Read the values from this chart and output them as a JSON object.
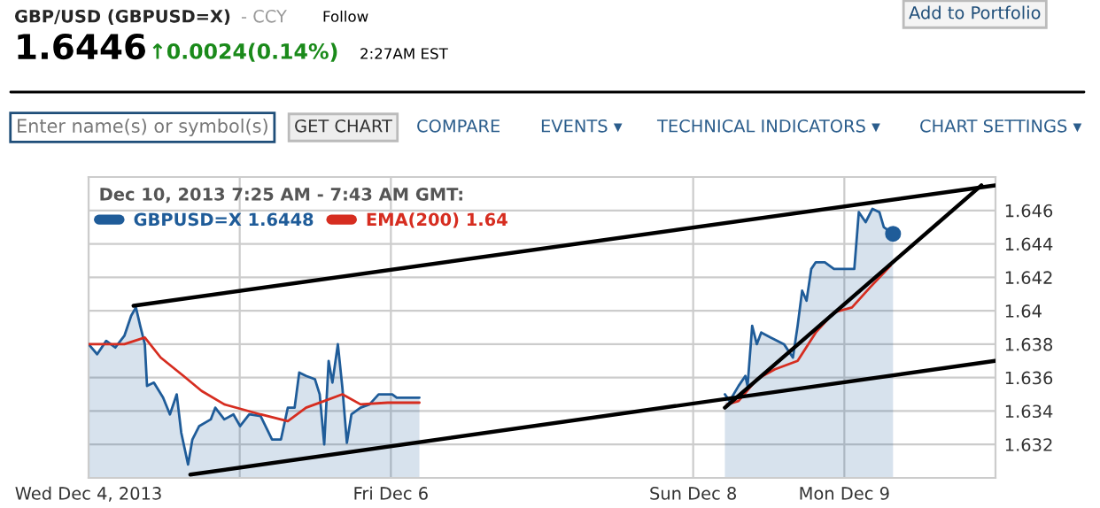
{
  "chart_data": {
    "type": "area",
    "title": "GBP/USD (GBPUSD=X)",
    "annotations": [
      "- CCY",
      "Follow",
      "1.6446",
      "↑0.0024(0.14%)",
      "2:27AM EST",
      "Add to Portfolio",
      "Enter name(s) or symbol(s)",
      "GET CHART",
      "COMPARE",
      "EVENTS ▾",
      "TECHNICAL INDICATORS ▾",
      "CHART SETTINGS ▾"
    ],
    "legend_title": "Dec 10, 2013 7:25 AM - 7:43 AM GMT:",
    "xlim": [
      "2013-12-04",
      "2013-12-10"
    ],
    "xticks": [
      {
        "value": "2013-12-04",
        "label": "Wed Dec 4, 2013"
      },
      {
        "value": "2013-12-05",
        "label": null
      },
      {
        "value": "2013-12-06",
        "label": "Fri Dec 6"
      },
      {
        "value": "2013-12-08",
        "label": "Sun Dec 8"
      },
      {
        "value": "2013-12-09",
        "label": "Mon Dec 9"
      }
    ],
    "ylim": [
      1.63,
      1.648
    ],
    "yticks": [
      1.632,
      1.634,
      1.636,
      1.638,
      1.64,
      1.642,
      1.644,
      1.646
    ],
    "grid": true,
    "legend": "top left",
    "series": [
      {
        "name": "GBPUSD=X 1.6448",
        "color": "#1f5c99",
        "x": [
          "2013-12-04T00:00",
          "2013-12-04T01:22",
          "2013-12-04T02:48",
          "2013-12-04T04:15",
          "2013-12-04T05:41",
          "2013-12-04T06:46",
          "2013-12-04T07:31",
          "2013-12-04T08:12",
          "2013-12-04T08:56",
          "2013-12-04T09:17",
          "2013-12-04T10:22",
          "2013-12-04T11:50",
          "2013-12-04T12:55",
          "2013-12-04T14:00",
          "2013-12-04T14:43",
          "2013-12-04T15:48",
          "2013-12-04T16:29",
          "2013-12-04T17:34",
          "2013-12-04T19:24",
          "2013-12-04T20:07",
          "2013-12-04T21:33",
          "2013-12-04T23:00",
          "2013-12-05T00:04",
          "2013-12-05T01:31",
          "2013-12-05T03:19",
          "2013-12-05T05:08",
          "2013-12-05T06:33",
          "2013-12-05T07:38",
          "2013-12-05T08:43",
          "2013-12-05T09:27",
          "2013-12-05T10:32",
          "2013-12-05T11:57",
          "2013-12-05T12:42",
          "2013-12-05T13:25",
          "2013-12-05T14:07",
          "2013-12-05T14:43",
          "2013-12-05T15:35",
          "2013-12-05T16:18",
          "2013-12-05T17:01",
          "2013-12-05T17:44",
          "2013-12-05T19:11",
          "2013-12-05T20:37",
          "2013-12-05T22:03",
          "2013-12-06T00:13",
          "2013-12-06T00:56",
          "2013-12-06T04:32",
          "2013-12-06T16:48",
          "2013-12-08T05:02",
          "2013-12-08T05:47",
          "2013-12-08T07:12",
          "2013-12-08T08:17",
          "2013-12-08T08:38",
          "2013-12-08T09:22",
          "2013-12-08T10:06",
          "2013-12-08T10:48",
          "2013-12-08T12:16",
          "2013-12-08T14:25",
          "2013-12-08T15:50",
          "2013-12-08T16:35",
          "2013-12-08T17:18",
          "2013-12-08T18:00",
          "2013-12-08T18:45",
          "2013-12-08T19:28",
          "2013-12-08T20:54",
          "2013-12-08T22:21",
          "2013-12-09T00:30",
          "2013-12-09T01:35",
          "2013-12-09T02:18",
          "2013-12-09T03:23",
          "2013-12-09T04:28",
          "2013-12-09T05:34",
          "2013-12-09T06:16",
          "2013-12-09T06:59",
          "2013-12-09T07:44"
        ],
        "values": [
          1.638,
          1.6374,
          1.6382,
          1.6378,
          1.6385,
          1.6397,
          1.6402,
          1.6391,
          1.638,
          1.6355,
          1.6357,
          1.6348,
          1.6338,
          1.635,
          1.6327,
          1.6308,
          1.6323,
          1.6331,
          1.6335,
          1.6342,
          1.6335,
          1.6338,
          1.6331,
          1.6338,
          1.6337,
          1.6323,
          1.6323,
          1.6342,
          1.6342,
          1.6363,
          1.6361,
          1.6359,
          1.635,
          1.632,
          1.637,
          1.6357,
          1.638,
          1.6354,
          1.6321,
          1.6338,
          1.6342,
          1.6344,
          1.635,
          1.635,
          1.6348,
          1.6348,
          null,
          1.635,
          1.6346,
          1.6355,
          1.6361,
          1.6355,
          1.6391,
          1.638,
          1.6387,
          1.6384,
          1.638,
          1.6372,
          1.6391,
          1.6412,
          1.6406,
          1.6425,
          1.6429,
          1.6429,
          1.6425,
          1.6425,
          1.6425,
          1.6459,
          1.6453,
          1.6461,
          1.6459,
          1.645,
          1.6448,
          1.6446
        ]
      },
      {
        "name": "EMA(200) 1.64",
        "type": "line",
        "color": "#d62d20",
        "x": [
          "2013-12-04T00:00",
          "2013-12-04T05:41",
          "2013-12-04T08:56",
          "2013-12-04T11:27",
          "2013-12-04T15:04",
          "2013-12-04T17:57",
          "2013-12-04T21:33",
          "2013-12-05T03:19",
          "2013-12-05T07:38",
          "2013-12-05T10:32",
          "2013-12-05T13:25",
          "2013-12-05T16:18",
          "2013-12-05T19:11",
          "2013-12-05T23:30",
          "2013-12-06T04:32",
          "2013-12-06T16:48",
          "2013-12-08T05:24",
          "2013-12-08T07:12",
          "2013-12-08T10:06",
          "2013-12-08T12:59",
          "2013-12-08T16:35",
          "2013-12-08T19:28",
          "2013-12-08T22:21",
          "2013-12-09T01:13",
          "2013-12-09T04:06",
          "2013-12-09T07:21"
        ],
        "values": [
          1.638,
          1.638,
          1.6384,
          1.6372,
          1.6361,
          1.6352,
          1.6344,
          1.6338,
          1.6334,
          1.6342,
          1.6346,
          1.635,
          1.6344,
          1.6345,
          1.6345,
          null,
          1.6344,
          1.6346,
          1.6359,
          1.6365,
          1.637,
          1.6387,
          1.6399,
          1.6402,
          1.6414,
          1.6427
        ]
      },
      {
        "type": "scatter",
        "color": "#1f5c99",
        "marker": "circle",
        "x": [
          "2013-12-09T07:44"
        ],
        "values": [
          1.6446
        ]
      },
      {
        "type": "line",
        "color": "#000000",
        "x": [
          "2013-12-04T07:08",
          "2013-12-09T23:56"
        ],
        "values": [
          1.6403,
          1.6475
        ]
      },
      {
        "type": "line",
        "color": "#000000",
        "x": [
          "2013-12-04T16:09",
          "2013-12-09T23:56"
        ],
        "values": [
          1.6302,
          1.637
        ]
      },
      {
        "type": "line",
        "color": "#000000",
        "x": [
          "2013-12-08T05:02",
          "2013-12-09T21:46"
        ],
        "values": [
          1.6342,
          1.6475
        ]
      }
    ]
  }
}
